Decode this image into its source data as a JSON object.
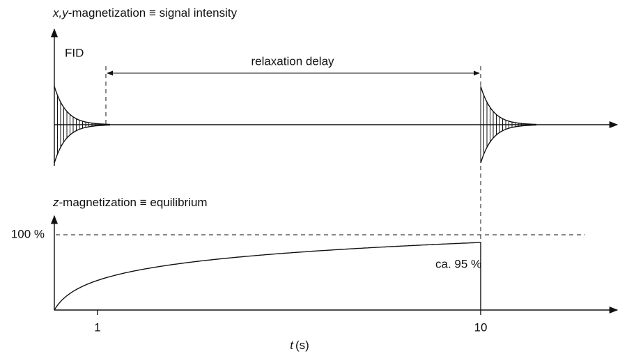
{
  "top_panel": {
    "axis_label": {
      "variable": "x,y",
      "rest": "-magnetization ≡ signal intensity"
    },
    "fid_label": "FID",
    "delay_label": "relaxation delay"
  },
  "bottom_panel": {
    "axis_label": {
      "variable": "z",
      "rest": "-magnetization ≡ equilibrium"
    },
    "level_label": "100 %",
    "reached_label": "ca. 95 %",
    "x_ticks": [
      "1",
      "10"
    ],
    "x_label": {
      "variable": "t",
      "unit": "(s)"
    }
  }
}
